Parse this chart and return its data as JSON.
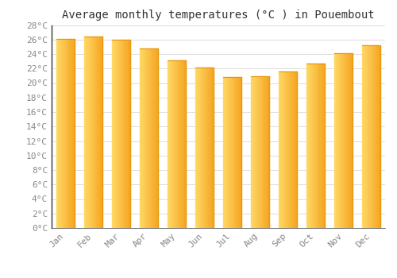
{
  "title": "Average monthly temperatures (°C ) in Pouembout",
  "months": [
    "Jan",
    "Feb",
    "Mar",
    "Apr",
    "May",
    "Jun",
    "Jul",
    "Aug",
    "Sep",
    "Oct",
    "Nov",
    "Dec"
  ],
  "values": [
    26.1,
    26.4,
    26.0,
    24.8,
    23.1,
    22.1,
    20.8,
    20.9,
    21.6,
    22.7,
    24.1,
    25.2
  ],
  "bar_color_left": "#FFD966",
  "bar_color_right": "#F5A623",
  "bar_edge_color": "#E8960A",
  "ylim": [
    0,
    28
  ],
  "ytick_step": 2,
  "background_color": "#FFFFFF",
  "grid_color": "#DDDDDD",
  "title_fontsize": 10,
  "tick_fontsize": 8,
  "tick_color": "#888888",
  "spine_color": "#333333"
}
